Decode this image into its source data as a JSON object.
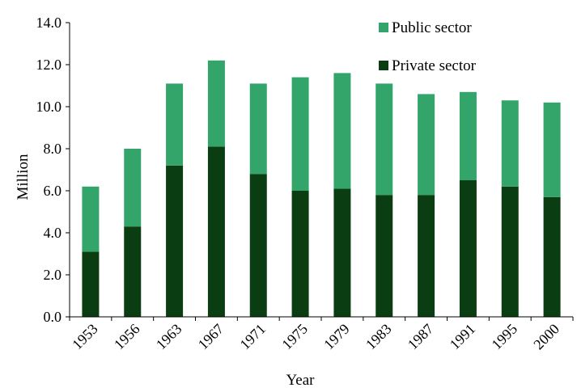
{
  "chart_data": {
    "type": "bar",
    "stacked": true,
    "title": "",
    "xlabel": "Year",
    "ylabel": "Million",
    "ylim": [
      0,
      14
    ],
    "yticks": [
      "0.0",
      "2.0",
      "4.0",
      "6.0",
      "8.0",
      "10.0",
      "12.0",
      "14.0"
    ],
    "grid": false,
    "legend_position": "top-right",
    "categories": [
      "1953",
      "1956",
      "1963",
      "1967",
      "1971",
      "1975",
      "1979",
      "1983",
      "1987",
      "1991",
      "1995",
      "2000"
    ],
    "series": [
      {
        "name": "Private sector",
        "color": "#0b3d13",
        "values": [
          3.1,
          4.3,
          7.2,
          8.1,
          6.8,
          6.0,
          6.1,
          5.8,
          5.8,
          6.5,
          6.2,
          5.7
        ]
      },
      {
        "name": "Public sector",
        "color": "#33a56a",
        "values": [
          3.1,
          3.7,
          3.9,
          4.1,
          4.3,
          5.4,
          5.5,
          5.3,
          4.8,
          4.2,
          4.1,
          4.5
        ]
      }
    ]
  }
}
